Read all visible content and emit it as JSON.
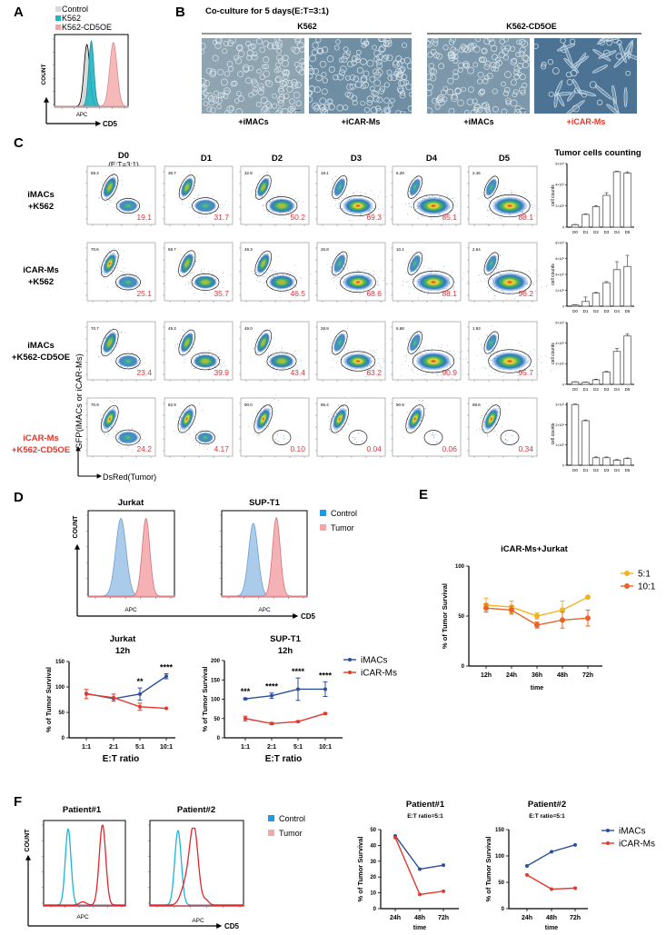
{
  "panel_labels": {
    "A": "A",
    "B": "B",
    "C": "C",
    "D": "D",
    "E": "E",
    "F": "F"
  },
  "colors": {
    "imacs": "#2d4f9b",
    "icar": "#e2392d",
    "ratio_5_1": "#f0b323",
    "ratio_10_1": "#e8622a",
    "control_hist": "#6fa8dc",
    "tumor_hist": "#ee9a9c",
    "highlight_text": "#e0382c",
    "pct_text": "#d9363e"
  },
  "panel_a": {
    "legend": [
      {
        "label": "Control",
        "color": "#d9d9d9"
      },
      {
        "label": "K562",
        "color": "#1fb5c4"
      },
      {
        "label": "K562-CD5OE",
        "color": "#f2a7a7"
      }
    ],
    "ylabel": "COUNT",
    "xlabel": "APC",
    "arrow_label": "CD5"
  },
  "panel_b": {
    "title": "Co-culture for 5 days(E:T=3:1)",
    "groups": [
      {
        "label": "K562",
        "images": [
          {
            "caption": "+iMACs",
            "highlight": false
          },
          {
            "caption": "+iCAR-Ms",
            "highlight": false
          }
        ]
      },
      {
        "label": "K562-CD5OE",
        "images": [
          {
            "caption": "+iMACs",
            "highlight": false
          },
          {
            "caption": "+iCAR-Ms",
            "highlight": true
          }
        ]
      }
    ]
  },
  "panel_c": {
    "columns": [
      "D0",
      "D1",
      "D2",
      "D3",
      "D4",
      "D5"
    ],
    "d0_note": "(E:T=3:1)",
    "bar_title": "Tumor cells counting",
    "y_axis_label": "GFP(iMACs or iCAR-Ms)",
    "x_axis_label": "DsRed(Tumor)",
    "rows": [
      {
        "line1": "iMACs",
        "line2": "+K562",
        "highlight": false,
        "gfp": [
          "58.4",
          "35.7",
          "32.8",
          "18.1",
          "6.29",
          "2.46"
        ],
        "tumor": [
          "19.1",
          "31.7",
          "50.2",
          "69.3",
          "85.1",
          "88.1"
        ]
      },
      {
        "line1": "iCAR-Ms",
        "line2": "+K562",
        "highlight": false,
        "gfp": [
          "70.6",
          "59.7",
          "49.3",
          "26.8",
          "10.1",
          "2.54"
        ],
        "tumor": [
          "25.1",
          "35.7",
          "46.5",
          "68.6",
          "88.1",
          "96.2"
        ]
      },
      {
        "line1": "iMACs",
        "line2": "+K562-CD5OE",
        "highlight": false,
        "gfp": [
          "70.7",
          "49.3",
          "49.0",
          "28.9",
          "6.68",
          "1.93"
        ],
        "tumor": [
          "23.4",
          "39.9",
          "43.4",
          "63.2",
          "90.9",
          "95.7"
        ]
      },
      {
        "line1": "iCAR-Ms",
        "line2": "+K562-CD5OE",
        "highlight": true,
        "gfp": [
          "70.9",
          "82.9",
          "90.0",
          "85.4",
          "90.9",
          "88.6"
        ],
        "tumor": [
          "24.2",
          "4.17",
          "0.10",
          "0.04",
          "0.06",
          "0.34"
        ]
      }
    ]
  },
  "panel_d": {
    "histograms": [
      {
        "title": "Jurkat",
        "xlabel": "APC"
      },
      {
        "title": "SUP-T1",
        "xlabel": "APC"
      }
    ],
    "ylabel": "COUNT",
    "arrow_label": "CD5",
    "legend": [
      {
        "label": "Control",
        "color": "#1e9be0"
      },
      {
        "label": "Tumor",
        "color": "#f4a6a8"
      }
    ]
  },
  "panel_f": {
    "histograms": [
      {
        "title": "Patient#1",
        "xlabel": "APC"
      },
      {
        "title": "Patient#2",
        "xlabel": "APC"
      }
    ],
    "ylabel": "COUNT",
    "arrow_label": "CD5",
    "legend": [
      {
        "label": "Control",
        "color": "#1e9be0"
      },
      {
        "label": "Tumor",
        "color": "#f4a6a8"
      }
    ]
  },
  "chart_data": [
    {
      "type": "bar",
      "title": "Tumor cells counting",
      "ylabel": "cell counts",
      "categories": [
        "D0",
        "D1",
        "D2",
        "D3",
        "D4",
        "D5"
      ],
      "values": [
        23000,
        120000,
        194000,
        300000,
        523000,
        510000
      ],
      "errors": [
        3000,
        5000,
        10000,
        25000,
        5000,
        12000
      ],
      "ylim": [
        0,
        600000
      ],
      "yticks": [
        0,
        200000,
        400000,
        600000
      ],
      "yticklabels": [
        "0",
        "2×10⁵",
        "4×10⁵",
        "6×10⁵"
      ]
    },
    {
      "type": "bar",
      "ylabel": "cell counts",
      "categories": [
        "D0",
        "D1",
        "D2",
        "D3",
        "D4",
        "D5"
      ],
      "values": [
        15000,
        60000,
        165000,
        295000,
        460000,
        500000
      ],
      "errors": [
        3000,
        55000,
        8000,
        15000,
        100000,
        140000
      ],
      "ylim": [
        0,
        800000
      ],
      "yticks": [
        0,
        200000,
        400000,
        600000,
        800000
      ],
      "yticklabels": [
        "0",
        "2×10⁵",
        "4×10⁵",
        "6×10⁵",
        "8×10⁵"
      ]
    },
    {
      "type": "bar",
      "ylabel": "cell counts",
      "categories": [
        "D0",
        "D1",
        "D2",
        "D3",
        "D4",
        "D5"
      ],
      "values": [
        24000,
        20000,
        45000,
        120000,
        320000,
        470000
      ],
      "errors": [
        2000,
        2000,
        5000,
        6000,
        30000,
        20000
      ],
      "ylim": [
        0,
        600000
      ],
      "yticks": [
        0,
        200000,
        400000,
        600000
      ],
      "yticklabels": [
        "0",
        "2×10⁵",
        "4×10⁵",
        "6×10⁵"
      ]
    },
    {
      "type": "bar",
      "ylabel": "cell counts",
      "categories": [
        "D0",
        "D1",
        "D2",
        "D3",
        "D4",
        "D5"
      ],
      "values": [
        300000,
        220000,
        37000,
        37000,
        25000,
        33000
      ],
      "errors": [
        3000,
        4000,
        4000,
        4000,
        3000,
        3000
      ],
      "ylim": [
        0,
        310000
      ],
      "yticks": [
        0,
        100000,
        200000,
        300000
      ],
      "yticklabels": [
        "0",
        "1×10⁵",
        "2×10⁵",
        "3×10⁵"
      ]
    },
    {
      "type": "line",
      "title": "Jurkat",
      "subtitle": "12h",
      "xlabel": "E:T ratio",
      "ylabel": "% of Tumor Survival",
      "categories": [
        "1:1",
        "2:1",
        "5:1",
        "10:1"
      ],
      "ylim": [
        0,
        150
      ],
      "yticks": [
        0,
        50,
        100,
        150
      ],
      "series": [
        {
          "name": "iMACs",
          "color": "#2d4f9b",
          "values": [
            87,
            77,
            86,
            121
          ],
          "errors": [
            0,
            0,
            12,
            5
          ]
        },
        {
          "name": "iCAR-Ms",
          "color": "#e2392d",
          "values": [
            86,
            79,
            61,
            58
          ],
          "errors": [
            9,
            7,
            7,
            1
          ]
        }
      ],
      "annotations": [
        "",
        "",
        "**",
        "****"
      ]
    },
    {
      "type": "line",
      "title": "SUP-T1",
      "subtitle": "12h",
      "xlabel": "E:T ratio",
      "ylabel": "% of Tumor Survival",
      "categories": [
        "1:1",
        "2:1",
        "5:1",
        "10:1"
      ],
      "ylim": [
        0,
        200
      ],
      "yticks": [
        0,
        50,
        100,
        150,
        200
      ],
      "legend": "right",
      "series": [
        {
          "name": "iMACs",
          "color": "#2d4f9b",
          "values": [
            101,
            109,
            126,
            126
          ],
          "errors": [
            2,
            7,
            29,
            19
          ]
        },
        {
          "name": "iCAR-Ms",
          "color": "#e2392d",
          "values": [
            50,
            37,
            42,
            63
          ],
          "errors": [
            6,
            3,
            2,
            2
          ]
        }
      ],
      "annotations": [
        "***",
        "****",
        "****",
        "****"
      ]
    },
    {
      "type": "line",
      "title": "iCAR-Ms+Jurkat",
      "xlabel": "time",
      "ylabel": "% of Tumor Survival",
      "categories": [
        "12h",
        "24h",
        "36h",
        "48h",
        "72h"
      ],
      "ylim": [
        0,
        100
      ],
      "yticks": [
        0,
        50,
        100
      ],
      "legend": "right",
      "series": [
        {
          "name": "5:1",
          "color": "#f0b323",
          "values": [
            61,
            59,
            50,
            56,
            69
          ],
          "errors": [
            7,
            6,
            3,
            9,
            1
          ]
        },
        {
          "name": "10:1",
          "color": "#e8622a",
          "values": [
            58,
            56,
            41,
            46,
            48
          ],
          "errors": [
            4,
            4,
            3,
            8,
            8
          ]
        }
      ]
    },
    {
      "type": "line",
      "title": "Patient#1",
      "subtitle": "E:T ratio=5:1",
      "xlabel": "time",
      "ylabel": "% of Tumor Survival",
      "categories": [
        "24h",
        "48h",
        "72h"
      ],
      "ylim": [
        0,
        50
      ],
      "yticks": [
        0,
        10,
        20,
        30,
        40,
        50
      ],
      "series": [
        {
          "name": "iMACs",
          "color": "#2d4f9b",
          "values": [
            46,
            25,
            27.5
          ]
        },
        {
          "name": "iCAR-Ms",
          "color": "#e2392d",
          "values": [
            45,
            9,
            11
          ]
        }
      ]
    },
    {
      "type": "line",
      "title": "Patient#2",
      "subtitle": "E:T ratio=5:1",
      "xlabel": "time",
      "ylabel": "% of Tumor Survival",
      "categories": [
        "24h",
        "48h",
        "72h"
      ],
      "ylim": [
        0,
        150
      ],
      "yticks": [
        0,
        50,
        100,
        150
      ],
      "legend": "right",
      "series": [
        {
          "name": "iMACs",
          "color": "#2d4f9b",
          "values": [
            81,
            108,
            121
          ]
        },
        {
          "name": "iCAR-Ms",
          "color": "#e2392d",
          "values": [
            64,
            37,
            39
          ]
        }
      ]
    }
  ]
}
